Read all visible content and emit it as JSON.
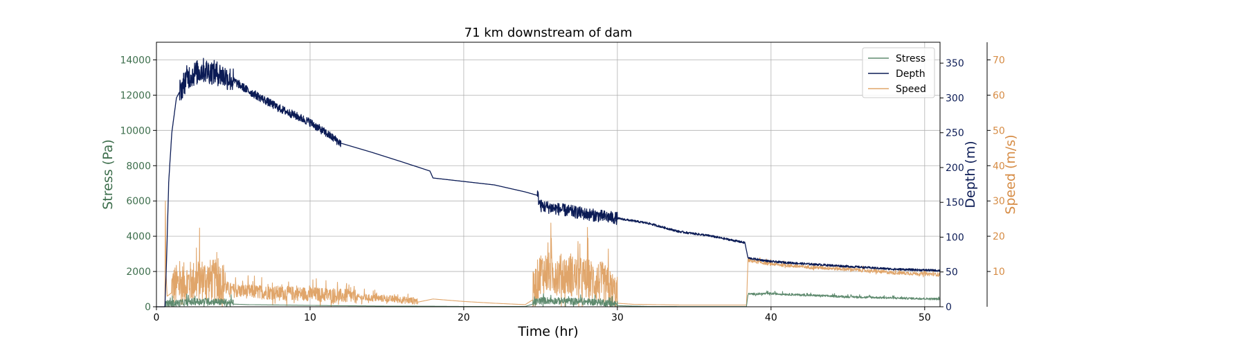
{
  "colors": {
    "stress": "#5e8a6e",
    "stress_axis": "#3d6e4c",
    "depth": "#0b1b55",
    "speed": "#e0a56a",
    "speed_axis": "#d68c45",
    "grid": "#b0b0b0"
  },
  "chart_data": {
    "type": "line",
    "title": "71 km downstream of dam",
    "xlabel": "Time (hr)",
    "xlim": [
      0,
      51
    ],
    "xticks": [
      0,
      10,
      20,
      30,
      40,
      50
    ],
    "grid": true,
    "legend_position": "top-right",
    "axes": {
      "stress": {
        "label": "Stress (Pa)",
        "lim": [
          0,
          15000
        ],
        "ticks": [
          0,
          2000,
          4000,
          6000,
          8000,
          10000,
          12000,
          14000
        ]
      },
      "depth": {
        "label": "Depth (m)",
        "lim": [
          0,
          380
        ],
        "ticks": [
          0,
          50,
          100,
          150,
          200,
          250,
          300,
          350
        ]
      },
      "speed": {
        "label": "Speed (m/s)",
        "lim": [
          0,
          75
        ],
        "ticks": [
          10,
          20,
          30,
          40,
          50,
          60,
          70
        ]
      }
    },
    "series": [
      {
        "name": "Stress",
        "axis": "stress",
        "points": [
          [
            0,
            0
          ],
          [
            0.55,
            0
          ],
          [
            0.6,
            100
          ],
          [
            1,
            120
          ],
          [
            2,
            200
          ],
          [
            3,
            250
          ],
          [
            4,
            230
          ],
          [
            5,
            150
          ],
          [
            6,
            120
          ],
          [
            8,
            100
          ],
          [
            10,
            80
          ],
          [
            12,
            60
          ],
          [
            15,
            40
          ],
          [
            18,
            30
          ],
          [
            20,
            20
          ],
          [
            24,
            15
          ],
          [
            25,
            300
          ],
          [
            27,
            250
          ],
          [
            29,
            200
          ],
          [
            30,
            60
          ],
          [
            32,
            20
          ],
          [
            35,
            10
          ],
          [
            38.4,
            10
          ],
          [
            38.5,
            700
          ],
          [
            40,
            730
          ],
          [
            42,
            650
          ],
          [
            45,
            550
          ],
          [
            48,
            480
          ],
          [
            51,
            420
          ]
        ],
        "noise": [
          [
            0.6,
            5,
            200
          ],
          [
            24.5,
            30,
            200
          ],
          [
            38.5,
            51,
            60
          ]
        ]
      },
      {
        "name": "Depth",
        "axis": "depth",
        "points": [
          [
            0,
            0
          ],
          [
            0.55,
            0
          ],
          [
            0.65,
            60
          ],
          [
            0.8,
            180
          ],
          [
            1,
            250
          ],
          [
            1.3,
            300
          ],
          [
            2,
            330
          ],
          [
            3,
            340
          ],
          [
            4,
            335
          ],
          [
            5,
            325
          ],
          [
            6,
            310
          ],
          [
            8,
            285
          ],
          [
            10,
            265
          ],
          [
            12,
            235
          ],
          [
            14,
            222
          ],
          [
            16,
            208
          ],
          [
            17.8,
            195
          ],
          [
            18,
            185
          ],
          [
            20,
            180
          ],
          [
            22,
            175
          ],
          [
            24,
            165
          ],
          [
            24.8,
            160
          ],
          [
            25,
            145
          ],
          [
            28,
            133
          ],
          [
            30,
            127
          ],
          [
            32,
            120
          ],
          [
            34,
            108
          ],
          [
            36,
            102
          ],
          [
            38.3,
            92
          ],
          [
            38.5,
            70
          ],
          [
            40,
            65
          ],
          [
            42,
            62
          ],
          [
            45,
            58
          ],
          [
            48,
            54
          ],
          [
            51,
            52
          ]
        ],
        "noise": [
          [
            1.5,
            5,
            18
          ],
          [
            5,
            12,
            6
          ],
          [
            24.8,
            30,
            9
          ],
          [
            30,
            38.3,
            1.5
          ],
          [
            38.5,
            51,
            1.5
          ]
        ]
      },
      {
        "name": "Speed",
        "axis": "speed",
        "points": [
          [
            0,
            0
          ],
          [
            0.55,
            0
          ],
          [
            0.58,
            30
          ],
          [
            0.62,
            10
          ],
          [
            0.7,
            3
          ],
          [
            1,
            4
          ],
          [
            2,
            5
          ],
          [
            3,
            6
          ],
          [
            4,
            5.5
          ],
          [
            5,
            4
          ],
          [
            7,
            3.5
          ],
          [
            10,
            3
          ],
          [
            12,
            2.5
          ],
          [
            15,
            2
          ],
          [
            17,
            1.3
          ],
          [
            18,
            2.2
          ],
          [
            20,
            1.5
          ],
          [
            22,
            1
          ],
          [
            24,
            0.6
          ],
          [
            24.5,
            2
          ],
          [
            25,
            8
          ],
          [
            27,
            7
          ],
          [
            29,
            5
          ],
          [
            30,
            1
          ],
          [
            31,
            0.7
          ],
          [
            34,
            0.5
          ],
          [
            38.4,
            0.5
          ],
          [
            38.5,
            13
          ],
          [
            40,
            12
          ],
          [
            42,
            11.2
          ],
          [
            45,
            10.5
          ],
          [
            48,
            9.5
          ],
          [
            51,
            9
          ]
        ],
        "noise": [
          [
            1,
            4.5,
            6
          ],
          [
            4.5,
            13,
            2
          ],
          [
            13,
            17,
            1
          ],
          [
            24.5,
            30,
            6
          ],
          [
            38.5,
            51,
            0.5
          ]
        ]
      }
    ]
  }
}
